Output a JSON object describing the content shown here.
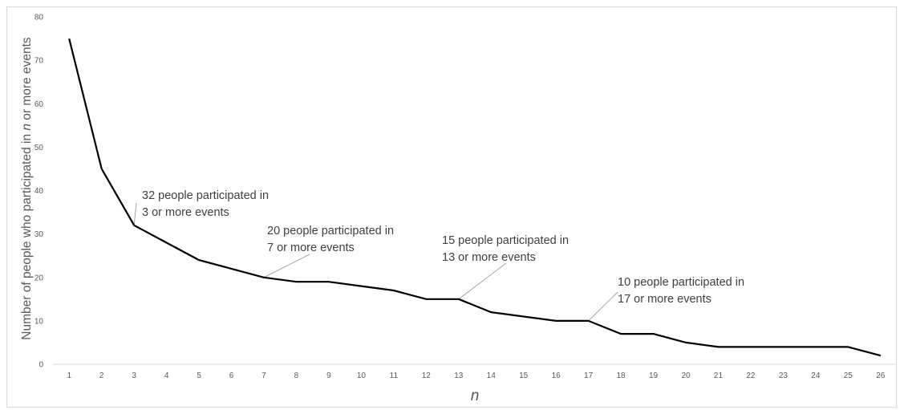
{
  "chart_data": {
    "type": "line",
    "xlabel": "n",
    "ylabel_parts": [
      "Number of people who participated in ",
      "n",
      " or more events"
    ],
    "ylim": [
      0,
      80
    ],
    "y_ticks": [
      0,
      10,
      20,
      30,
      40,
      50,
      60,
      70,
      80
    ],
    "grid": false,
    "legend": "none",
    "line_color": "#000000",
    "x": [
      1,
      2,
      3,
      4,
      5,
      6,
      7,
      8,
      9,
      10,
      11,
      12,
      13,
      14,
      15,
      16,
      17,
      18,
      19,
      20,
      21,
      22,
      23,
      24,
      25,
      26
    ],
    "values": [
      75,
      45,
      32,
      28,
      24,
      22,
      20,
      19,
      19,
      18,
      17,
      15,
      15,
      12,
      11,
      10,
      10,
      7,
      7,
      5,
      4,
      4,
      4,
      4,
      4,
      2
    ],
    "annotations": [
      {
        "x": 3,
        "y": 32,
        "lines": [
          "32 people participated in",
          "3 or more events"
        ]
      },
      {
        "x": 7,
        "y": 20,
        "lines": [
          "20 people participated in",
          "7 or more events"
        ]
      },
      {
        "x": 13,
        "y": 15,
        "lines": [
          "15 people participated in",
          "13 or more events"
        ]
      },
      {
        "x": 17,
        "y": 10,
        "lines": [
          "10 people participated in",
          "17 or more events"
        ]
      }
    ]
  }
}
